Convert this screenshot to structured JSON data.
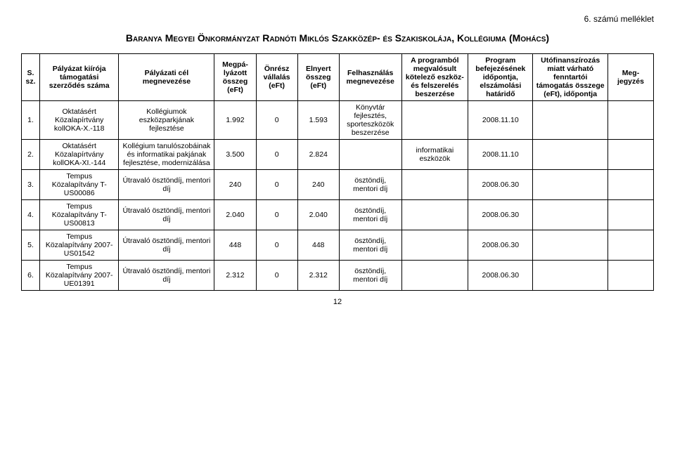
{
  "annex": "6. számú melléklet",
  "title": "Baranya Megyei Önkormányzat Radnóti Miklós Szakközép- és Szakiskolája, Kollégiuma (Mohács)",
  "headers": {
    "sz": "S. sz.",
    "kiir": "Pályázat kiírója támogatási szerződés száma",
    "cel": "Pályázati cél megnevezése",
    "megp": "Megpá­lyázott összeg (eFt)",
    "onr": "Önrész vállalás (eFt)",
    "eln": "Elnyert összeg (eFt)",
    "felh": "Felhasz­nálás megne­vezése",
    "prog": "A programból megvalósult kötelező eszköz- és felszerelés beszerzése",
    "bef": "Program befejezésé­nek időpontja, elszámolási határidő",
    "uto": "Utófinanszíro­zás miatt vár­ható fenntartói támogatás összege (eFt), időpontja",
    "meg": "Meg­jegyzés"
  },
  "rows": [
    {
      "sz": "1.",
      "kiir": "Oktatásért Közalapírtvány kollOKA-X.-118",
      "cel": "Kollégiumok eszközparkjának fejlesztése",
      "megp": "1.992",
      "onr": "0",
      "eln": "1.593",
      "felh": "Könyvtár fejlesztés, sportesz­közök be­szerzése",
      "prog": "",
      "bef": "2008.11.10",
      "uto": "",
      "meg": ""
    },
    {
      "sz": "2.",
      "kiir": "Oktatásért Közalapírtvány kollOKA-XI.-144",
      "cel": "Kollégium tanulószobáinak és informatikai pakjának fejlesztése, modernizálása",
      "megp": "3.500",
      "onr": "0",
      "eln": "2.824",
      "felh": "",
      "prog": "informatikai eszközök",
      "bef": "2008.11.10",
      "uto": "",
      "meg": ""
    },
    {
      "sz": "3.",
      "kiir": "Tempus Közalapítvány T-US00086",
      "cel": "Útravaló ösztöndíj, mentori díj",
      "megp": "240",
      "onr": "0",
      "eln": "240",
      "felh": "ösztöndíj, mentori díj",
      "prog": "",
      "bef": "2008.06.30",
      "uto": "",
      "meg": ""
    },
    {
      "sz": "4.",
      "kiir": "Tempus Közalapítvány T-US00813",
      "cel": "Útravaló ösztöndíj, mentori díj",
      "megp": "2.040",
      "onr": "0",
      "eln": "2.040",
      "felh": "ösztöndíj, mentori díj",
      "prog": "",
      "bef": "2008.06.30",
      "uto": "",
      "meg": ""
    },
    {
      "sz": "5.",
      "kiir": "Tempus Közalapítvány 2007-US01542",
      "cel": "Útravaló ösztöndíj, mentori díj",
      "megp": "448",
      "onr": "0",
      "eln": "448",
      "felh": "ösztöndíj, mentori díj",
      "prog": "",
      "bef": "2008.06.30",
      "uto": "",
      "meg": ""
    },
    {
      "sz": "6.",
      "kiir": "Tempus Közalapítvány 2007-UE01391",
      "cel": "Útravaló ösztöndíj, mentori díj",
      "megp": "2.312",
      "onr": "0",
      "eln": "2.312",
      "felh": "ösztöndíj, mentori díj",
      "prog": "",
      "bef": "2008.06.30",
      "uto": "",
      "meg": ""
    }
  ],
  "pagenum": "12",
  "styles": {
    "background": "#ffffff",
    "foreground": "#000000",
    "header_fontsize": 10.5,
    "body_fontsize": 10.5,
    "title_fontsize": 14,
    "annex_fontsize": 12,
    "border_color": "#000000"
  }
}
